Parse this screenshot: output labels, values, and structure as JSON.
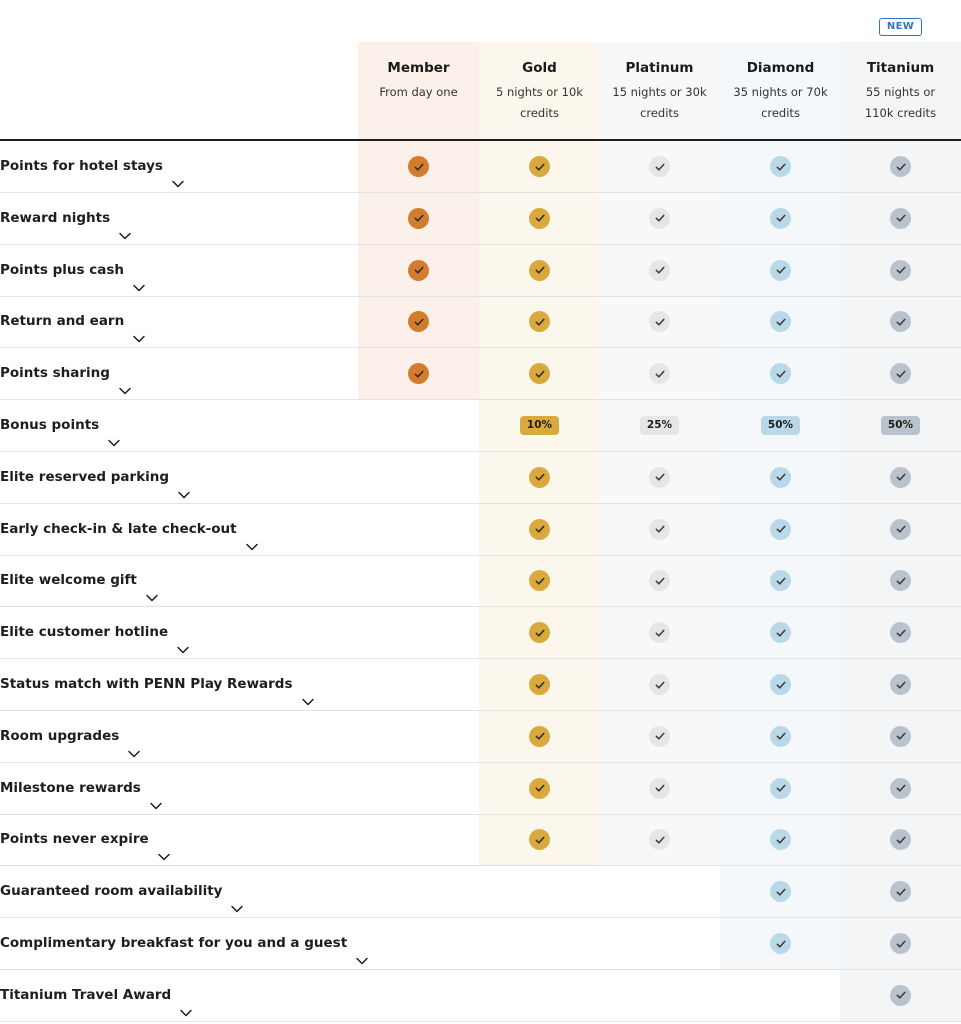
{
  "new_badge": "NEW",
  "tiers": [
    {
      "name": "Member",
      "req": "From day one",
      "bg": "#fbf0ea",
      "check": "#d37c2e",
      "pill": "#d37c2e"
    },
    {
      "name": "Gold",
      "req": "5 nights or 10k credits",
      "bg": "#fcf7ec",
      "check": "#d9a93d",
      "pill": "#d9a93d"
    },
    {
      "name": "Platinum",
      "req": "15 nights or 30k credits",
      "bg": "#f8f8f8",
      "check": "#e6e6e6",
      "pill": "#e6e6e6"
    },
    {
      "name": "Diamond",
      "req": "35 nights or 70k credits",
      "bg": "#f4f8fa",
      "check": "#b9d8e8",
      "pill": "#b9d8e8"
    },
    {
      "name": "Titanium",
      "req": "55 nights or 110k credits",
      "bg": "#f4f5f6",
      "check": "#b9c3cd",
      "pill": "#b9c3cd"
    }
  ],
  "rows": [
    {
      "label": "Points for hotel stays",
      "cells": [
        "check",
        "check",
        "check",
        "check",
        "check"
      ]
    },
    {
      "label": "Reward nights",
      "cells": [
        "check",
        "check",
        "check",
        "check",
        "check"
      ]
    },
    {
      "label": "Points plus cash",
      "cells": [
        "check",
        "check",
        "check",
        "check",
        "check"
      ]
    },
    {
      "label": "Return and earn",
      "cells": [
        "check",
        "check",
        "check",
        "check",
        "check"
      ]
    },
    {
      "label": "Points sharing",
      "cells": [
        "check",
        "check",
        "check",
        "check",
        "check"
      ]
    },
    {
      "label": "Bonus points",
      "cells": [
        "",
        "10%",
        "25%",
        "50%",
        "50%"
      ]
    },
    {
      "label": "Elite reserved parking",
      "cells": [
        "",
        "check",
        "check",
        "check",
        "check"
      ]
    },
    {
      "label": "Early check-in & late check-out",
      "cells": [
        "",
        "check",
        "check",
        "check",
        "check"
      ]
    },
    {
      "label": "Elite welcome gift",
      "cells": [
        "",
        "check",
        "check",
        "check",
        "check"
      ]
    },
    {
      "label": "Elite customer hotline",
      "cells": [
        "",
        "check",
        "check",
        "check",
        "check"
      ]
    },
    {
      "label": "Status match with PENN Play Rewards",
      "cells": [
        "",
        "check",
        "check",
        "check",
        "check"
      ]
    },
    {
      "label": "Room upgrades",
      "cells": [
        "",
        "check",
        "check",
        "check",
        "check"
      ]
    },
    {
      "label": "Milestone rewards",
      "cells": [
        "",
        "check",
        "check",
        "check",
        "check"
      ]
    },
    {
      "label": "Points never expire",
      "cells": [
        "",
        "check",
        "check",
        "check",
        "check"
      ]
    },
    {
      "label": "Guaranteed room availability",
      "cells": [
        "",
        "",
        "",
        "check",
        "check"
      ]
    },
    {
      "label": "Complimentary breakfast for you and a guest",
      "cells": [
        "",
        "",
        "",
        "check",
        "check"
      ]
    },
    {
      "label": "Titanium Travel Award",
      "cells": [
        "",
        "",
        "",
        "",
        "check"
      ]
    }
  ]
}
